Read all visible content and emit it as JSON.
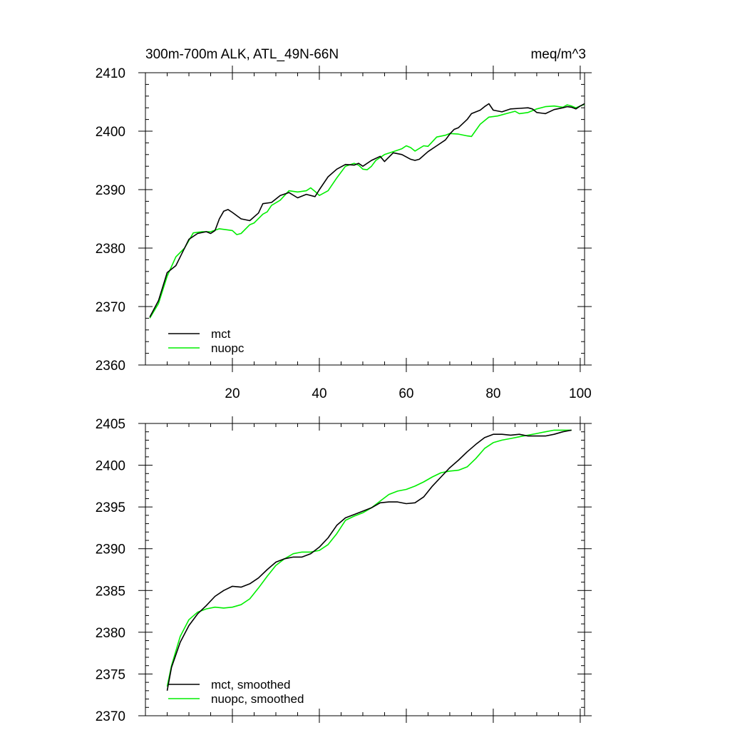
{
  "header": {
    "left_title": "300m-700m ALK, ATL_49N-66N",
    "right_title": "meq/m^3"
  },
  "colors": {
    "mct": "#000000",
    "nuopc": "#00ee00",
    "axis": "#000000",
    "background": "#ffffff"
  },
  "chart_data": [
    {
      "type": "line",
      "title": "300m-700m ALK, ATL_49N-66N",
      "units": "meq/m^3",
      "xlim": [
        0,
        101
      ],
      "ylim": [
        2360,
        2410
      ],
      "x_ticks": [
        20,
        40,
        60,
        80,
        100
      ],
      "x_tick_labels": [
        "20",
        "40",
        "60",
        "80",
        "100"
      ],
      "x_minor_step": 5,
      "y_ticks": [
        2360,
        2370,
        2380,
        2390,
        2400,
        2410
      ],
      "y_tick_labels": [
        "2360",
        "2370",
        "2380",
        "2390",
        "2400",
        "2410"
      ],
      "y_minor_step": 2,
      "legend_position": "bottom-left",
      "series": [
        {
          "name": "mct",
          "color": "#000000",
          "points": [
            [
              1,
              2368.2
            ],
            [
              3,
              2371
            ],
            [
              5,
              2375.8
            ],
            [
              7,
              2377
            ],
            [
              10,
              2381.5
            ],
            [
              12,
              2382.5
            ],
            [
              14,
              2382.8
            ],
            [
              15,
              2382.5
            ],
            [
              16,
              2383
            ],
            [
              17,
              2385
            ],
            [
              18,
              2386.3
            ],
            [
              19,
              2386.6
            ],
            [
              20,
              2386.1
            ],
            [
              22,
              2385
            ],
            [
              24,
              2384.7
            ],
            [
              26,
              2386
            ],
            [
              27,
              2387.6
            ],
            [
              29,
              2387.8
            ],
            [
              31,
              2389
            ],
            [
              33,
              2389.5
            ],
            [
              35,
              2388.6
            ],
            [
              37,
              2389.2
            ],
            [
              39,
              2388.8
            ],
            [
              40,
              2390
            ],
            [
              42,
              2392.2
            ],
            [
              44,
              2393.5
            ],
            [
              46,
              2394.3
            ],
            [
              48,
              2394.2
            ],
            [
              49,
              2394.5
            ],
            [
              50,
              2394
            ],
            [
              52,
              2395
            ],
            [
              54,
              2395.7
            ],
            [
              55,
              2394.8
            ],
            [
              57,
              2396.3
            ],
            [
              59,
              2396
            ],
            [
              61,
              2395.2
            ],
            [
              62,
              2395
            ],
            [
              63,
              2395.2
            ],
            [
              65,
              2396.5
            ],
            [
              67,
              2397.5
            ],
            [
              69,
              2398.5
            ],
            [
              70,
              2399.5
            ],
            [
              71,
              2400.3
            ],
            [
              72,
              2400.6
            ],
            [
              74,
              2402
            ],
            [
              75,
              2403
            ],
            [
              77,
              2403.6
            ],
            [
              78,
              2404.2
            ],
            [
              79,
              2404.7
            ],
            [
              80,
              2403.6
            ],
            [
              82,
              2403.3
            ],
            [
              84,
              2403.8
            ],
            [
              86,
              2403.9
            ],
            [
              88,
              2404
            ],
            [
              89,
              2403.8
            ],
            [
              90,
              2403.2
            ],
            [
              92,
              2403
            ],
            [
              94,
              2403.7
            ],
            [
              96,
              2404
            ],
            [
              97,
              2404.2
            ],
            [
              98,
              2404.1
            ],
            [
              99,
              2403.8
            ],
            [
              100,
              2404.3
            ],
            [
              101,
              2404.7
            ]
          ]
        },
        {
          "name": "nuopc",
          "color": "#00ee00",
          "points": [
            [
              1,
              2368
            ],
            [
              3,
              2370.5
            ],
            [
              5,
              2375.2
            ],
            [
              7,
              2378.5
            ],
            [
              9,
              2380
            ],
            [
              11,
              2382.6
            ],
            [
              13,
              2382.8
            ],
            [
              15,
              2382.8
            ],
            [
              17,
              2383.3
            ],
            [
              19,
              2383.1
            ],
            [
              20,
              2383
            ],
            [
              21,
              2382.3
            ],
            [
              22,
              2382.5
            ],
            [
              24,
              2384
            ],
            [
              25,
              2384.3
            ],
            [
              27,
              2385.8
            ],
            [
              28,
              2386.2
            ],
            [
              29,
              2387.3
            ],
            [
              31,
              2388.2
            ],
            [
              33,
              2389.8
            ],
            [
              35,
              2389.6
            ],
            [
              37,
              2389.8
            ],
            [
              38,
              2390.3
            ],
            [
              39,
              2389.7
            ],
            [
              40,
              2389
            ],
            [
              42,
              2389.8
            ],
            [
              44,
              2392
            ],
            [
              46,
              2394
            ],
            [
              48,
              2394.5
            ],
            [
              49,
              2394.2
            ],
            [
              50,
              2393.5
            ],
            [
              51,
              2393.4
            ],
            [
              52,
              2394
            ],
            [
              53,
              2395
            ],
            [
              55,
              2396
            ],
            [
              57,
              2396.5
            ],
            [
              59,
              2397
            ],
            [
              60,
              2397.5
            ],
            [
              61,
              2397.2
            ],
            [
              62,
              2396.6
            ],
            [
              64,
              2397.5
            ],
            [
              65,
              2397.4
            ],
            [
              67,
              2399
            ],
            [
              69,
              2399.3
            ],
            [
              70,
              2399.6
            ],
            [
              72,
              2399.5
            ],
            [
              74,
              2399.2
            ],
            [
              75,
              2399.1
            ],
            [
              77,
              2401.2
            ],
            [
              79,
              2402.4
            ],
            [
              81,
              2402.6
            ],
            [
              83,
              2403
            ],
            [
              85,
              2403.4
            ],
            [
              86,
              2403
            ],
            [
              88,
              2403.2
            ],
            [
              90,
              2403.8
            ],
            [
              92,
              2404.2
            ],
            [
              94,
              2404.3
            ],
            [
              96,
              2404.1
            ],
            [
              97,
              2404.5
            ],
            [
              98,
              2404.3
            ],
            [
              99,
              2404
            ],
            [
              100,
              2404.3
            ],
            [
              101,
              2404.6
            ]
          ]
        }
      ]
    },
    {
      "type": "line",
      "title": "",
      "xlim": [
        0,
        101
      ],
      "ylim": [
        2370,
        2405
      ],
      "x_ticks": [
        20,
        40,
        60,
        80,
        100
      ],
      "x_tick_labels": [],
      "x_minor_step": 5,
      "y_ticks": [
        2370,
        2375,
        2380,
        2385,
        2390,
        2395,
        2400,
        2405
      ],
      "y_tick_labels": [
        "2370",
        "2375",
        "2380",
        "2385",
        "2390",
        "2395",
        "2400",
        "2405"
      ],
      "y_minor_step": 1,
      "legend_position": "bottom-left",
      "series": [
        {
          "name": "mct, smoothed",
          "color": "#000000",
          "points": [
            [
              5,
              2373
            ],
            [
              6,
              2375.8
            ],
            [
              8,
              2378.8
            ],
            [
              10,
              2380.8
            ],
            [
              12,
              2382.2
            ],
            [
              14,
              2383.2
            ],
            [
              16,
              2384.3
            ],
            [
              18,
              2385
            ],
            [
              20,
              2385.5
            ],
            [
              22,
              2385.4
            ],
            [
              24,
              2385.8
            ],
            [
              26,
              2386.5
            ],
            [
              28,
              2387.5
            ],
            [
              30,
              2388.4
            ],
            [
              32,
              2388.8
            ],
            [
              34,
              2389
            ],
            [
              36,
              2389
            ],
            [
              38,
              2389.4
            ],
            [
              40,
              2390.2
            ],
            [
              42,
              2391.3
            ],
            [
              44,
              2392.8
            ],
            [
              46,
              2393.7
            ],
            [
              48,
              2394.1
            ],
            [
              50,
              2394.5
            ],
            [
              52,
              2394.9
            ],
            [
              54,
              2395.5
            ],
            [
              56,
              2395.6
            ],
            [
              58,
              2395.6
            ],
            [
              60,
              2395.4
            ],
            [
              62,
              2395.5
            ],
            [
              64,
              2396.2
            ],
            [
              66,
              2397.5
            ],
            [
              68,
              2398.6
            ],
            [
              70,
              2399.7
            ],
            [
              72,
              2400.6
            ],
            [
              74,
              2401.6
            ],
            [
              76,
              2402.5
            ],
            [
              78,
              2403.3
            ],
            [
              80,
              2403.7
            ],
            [
              82,
              2403.7
            ],
            [
              84,
              2403.6
            ],
            [
              86,
              2403.7
            ],
            [
              88,
              2403.5
            ],
            [
              90,
              2403.5
            ],
            [
              92,
              2403.5
            ],
            [
              94,
              2403.7
            ],
            [
              96,
              2404
            ],
            [
              98,
              2404.2
            ]
          ]
        },
        {
          "name": "nuopc, smoothed",
          "color": "#00ee00",
          "points": [
            [
              5,
              2373.5
            ],
            [
              6,
              2376
            ],
            [
              8,
              2379.5
            ],
            [
              10,
              2381.5
            ],
            [
              12,
              2382.4
            ],
            [
              14,
              2382.8
            ],
            [
              16,
              2383
            ],
            [
              18,
              2382.9
            ],
            [
              20,
              2383
            ],
            [
              22,
              2383.3
            ],
            [
              24,
              2384
            ],
            [
              26,
              2385.3
            ],
            [
              28,
              2386.7
            ],
            [
              30,
              2388
            ],
            [
              32,
              2388.8
            ],
            [
              34,
              2389.4
            ],
            [
              36,
              2389.6
            ],
            [
              38,
              2389.6
            ],
            [
              40,
              2389.8
            ],
            [
              42,
              2390.5
            ],
            [
              44,
              2391.8
            ],
            [
              46,
              2393.4
            ],
            [
              48,
              2393.9
            ],
            [
              50,
              2394.3
            ],
            [
              52,
              2394.9
            ],
            [
              54,
              2395.7
            ],
            [
              56,
              2396.5
            ],
            [
              58,
              2396.9
            ],
            [
              60,
              2397.1
            ],
            [
              62,
              2397.5
            ],
            [
              64,
              2398
            ],
            [
              66,
              2398.6
            ],
            [
              68,
              2399.1
            ],
            [
              70,
              2399.3
            ],
            [
              72,
              2399.4
            ],
            [
              74,
              2399.8
            ],
            [
              76,
              2400.8
            ],
            [
              78,
              2402
            ],
            [
              80,
              2402.7
            ],
            [
              82,
              2403
            ],
            [
              84,
              2403.2
            ],
            [
              86,
              2403.4
            ],
            [
              88,
              2403.6
            ],
            [
              90,
              2403.8
            ],
            [
              92,
              2404
            ],
            [
              94,
              2404.2
            ],
            [
              96,
              2404.2
            ],
            [
              98,
              2404.2
            ]
          ]
        }
      ]
    }
  ]
}
